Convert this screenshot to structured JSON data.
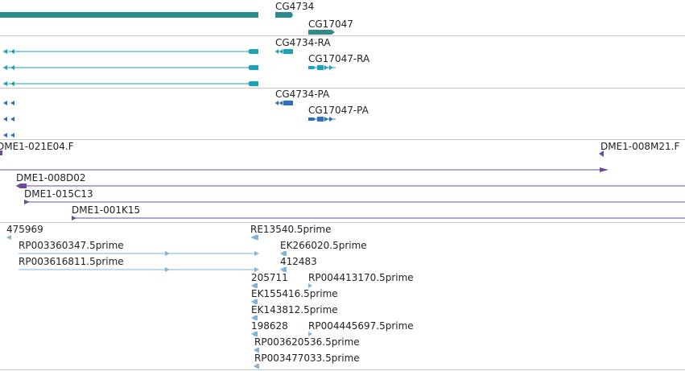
{
  "tracks": [
    {
      "id": "genes",
      "color": "#2e8b8b",
      "labels": [
        "CG4734",
        "CG17047"
      ]
    },
    {
      "id": "transcripts-ra",
      "color": "#1aa3b8",
      "labels": [
        "CG4734-RA",
        "CG17047-RA"
      ]
    },
    {
      "id": "transcripts-pa",
      "color": "#2f6fbf",
      "labels": [
        "CG4734-PA",
        "CG17047-PA"
      ]
    },
    {
      "id": "clones",
      "color": "#6a4c9c",
      "labels": [
        "DME1-021E04.F",
        "DME1-008M21.F",
        "DME1-008D02",
        "DME1-015C13",
        "DME1-001K15"
      ]
    },
    {
      "id": "ests",
      "color": "#82b4d8",
      "labels": [
        "475969",
        "RE13540.5prime",
        "RP003360347.5prime",
        "EK266020.5prime",
        "RP003616811.5prime",
        "412483",
        "205711",
        "RP004413170.5prime",
        "EK155416.5prime",
        "EK143812.5prime",
        "198628",
        "RP004445697.5prime",
        "RP003620536.5prime",
        "RP003477033.5prime"
      ]
    }
  ]
}
